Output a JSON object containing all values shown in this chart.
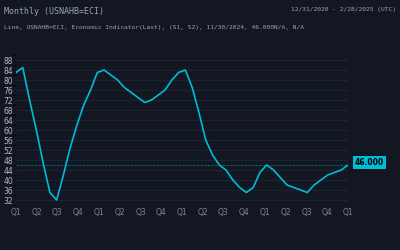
{
  "title": "Monthly (USNAHB=ECI)",
  "subtitle": "Line, USNAHB=ECI, Economic Indicator(Last), (S1, S2), 11/30/2024, 46.000N/A, N/A",
  "date_range": "12/31/2020 - 2/28/2025 (UTC)",
  "bg_color": "#131722",
  "panel_bg": "#131722",
  "grid_color": "#1e2a3a",
  "line_color": "#00bcd4",
  "label_color": "#b0b8c8",
  "title_color": "#9aa4b2",
  "highlight_color": "#00bcd4",
  "current_value": 46.0,
  "current_value_label": "46.000",
  "ylim": [
    30,
    90
  ],
  "yticks": [
    32,
    36,
    40,
    44,
    48,
    52,
    56,
    60,
    64,
    68,
    72,
    76,
    80,
    84,
    88
  ],
  "xlabel_color": "#7a8499",
  "xtick_labels": [
    "Q1",
    "Q2",
    "Q3",
    "Q4",
    "Q1",
    "Q2",
    "Q3",
    "Q4",
    "Q1",
    "Q2",
    "Q3",
    "Q4",
    "Q1",
    "Q2",
    "Q3",
    "Q4",
    "Q1"
  ],
  "data_x": [
    0,
    0.083,
    0.167,
    0.25,
    0.333,
    0.417,
    0.5,
    0.583,
    0.667,
    0.75,
    0.833,
    0.917,
    1.0,
    1.083,
    1.167,
    1.25,
    1.333,
    1.417,
    1.5,
    1.583,
    1.667,
    1.75,
    1.833,
    1.917,
    2.0,
    2.083,
    2.167,
    2.25,
    2.333,
    2.417,
    2.5,
    2.583,
    2.667,
    2.75,
    2.833,
    2.917,
    3.0,
    3.083,
    3.167,
    3.25,
    3.333,
    3.417,
    3.5,
    3.583,
    3.667,
    3.75,
    3.833,
    3.917,
    4.0,
    4.083
  ],
  "data_y": [
    83,
    85,
    72,
    60,
    47,
    35,
    32,
    42,
    53,
    62,
    70,
    76,
    83,
    84,
    82,
    80,
    77,
    75,
    73,
    71,
    72,
    74,
    76,
    80,
    83,
    84,
    77,
    67,
    56,
    50,
    46,
    44,
    40,
    37,
    35,
    37,
    43,
    46,
    44,
    41,
    38,
    37,
    36,
    35,
    38,
    40,
    42,
    43,
    44,
    46
  ]
}
